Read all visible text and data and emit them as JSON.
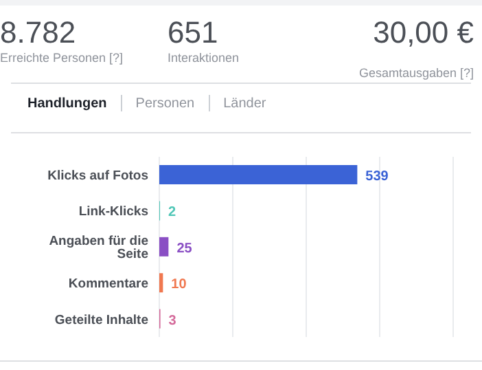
{
  "chart_data": {
    "type": "bar",
    "orientation": "horizontal",
    "categories": [
      "Klicks auf Fotos",
      "Link-Klicks",
      "Angaben für die Seite",
      "Kommentare",
      "Geteilte Inhalte"
    ],
    "values": [
      539,
      2,
      25,
      10,
      3
    ],
    "colors": [
      "#3b63d6",
      "#4fc6b6",
      "#8a4fc4",
      "#f07850",
      "#d46a9a"
    ],
    "xlim": [
      0,
      800
    ],
    "tick_labels": "y",
    "grid": "x",
    "data_labels": true,
    "legend": false,
    "annotations": [
      "8.782",
      "Erreichte Personen [?]",
      "651",
      "Interaktionen",
      "30,00 €",
      "Gesamtausgaben [?]",
      "Handlungen",
      "Personen",
      "Länder"
    ]
  }
}
